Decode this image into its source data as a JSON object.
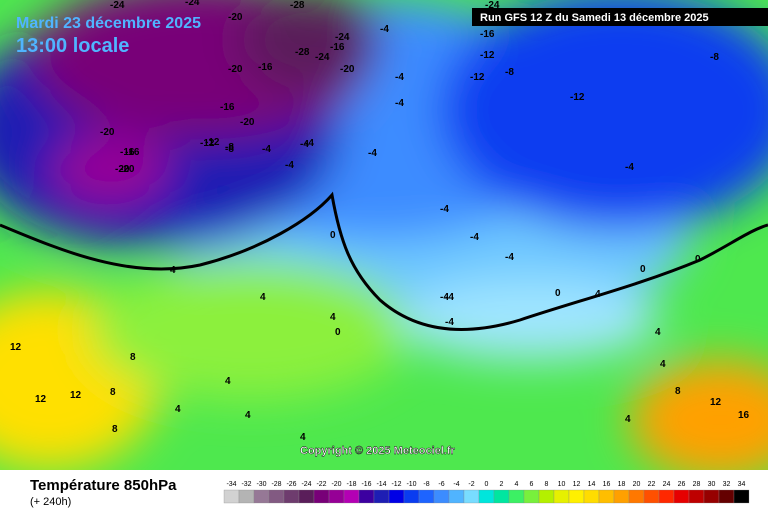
{
  "header": {
    "date": "Mardi 23 décembre 2025",
    "time": "13:00 locale",
    "run": "Run GFS 12 Z du Samedi 13 décembre 2025"
  },
  "map": {
    "contour_labels": [
      "-24",
      "-20",
      "-24",
      "-28",
      "-24",
      "-20",
      "-16",
      "-28",
      "-24",
      "-16",
      "-20",
      "-4",
      "-16",
      "-24",
      "-12",
      "-8",
      "-12",
      "-4",
      "-4",
      "-16",
      "-20",
      "-8",
      "-12",
      "-4",
      "-4",
      "-4",
      "-4",
      "-4",
      "-4",
      "-12",
      "-4",
      "0",
      "0",
      "-4",
      "-4",
      "0",
      "4",
      "4",
      "4",
      "0",
      "4",
      "12",
      "12",
      "8",
      "8",
      "12",
      "4",
      "4",
      "4",
      "4",
      "8",
      "12",
      "16",
      "4",
      "-4",
      "0",
      "4",
      "8",
      "4",
      "-20",
      "-20",
      "-16",
      "-16",
      "-20",
      "-4",
      "-12",
      "-8",
      "-8",
      "-4"
    ],
    "copyright": "Copyright © 2025 Meteociel.fr"
  },
  "footer": {
    "title": "Température 850hPa",
    "lead": "(+ 240h)"
  },
  "legend": {
    "scale": [
      {
        "value": -34,
        "color": "#d2d2d2"
      },
      {
        "value": -32,
        "color": "#b4b4b4"
      },
      {
        "value": -30,
        "color": "#967896"
      },
      {
        "value": -28,
        "color": "#825a82"
      },
      {
        "value": -26,
        "color": "#6e3c6e"
      },
      {
        "value": -24,
        "color": "#5a1e5a"
      },
      {
        "value": -22,
        "color": "#780078"
      },
      {
        "value": -20,
        "color": "#960096"
      },
      {
        "value": -18,
        "color": "#b400b4"
      },
      {
        "value": -16,
        "color": "#3c00a0"
      },
      {
        "value": -14,
        "color": "#1e1eb4"
      },
      {
        "value": -12,
        "color": "#0000e6"
      },
      {
        "value": -10,
        "color": "#0a3cf0"
      },
      {
        "value": -8,
        "color": "#1e64ff"
      },
      {
        "value": -6,
        "color": "#3c8cff"
      },
      {
        "value": -4,
        "color": "#50b4ff"
      },
      {
        "value": -2,
        "color": "#78dcff"
      },
      {
        "value": 0,
        "color": "#00e6dc"
      },
      {
        "value": 2,
        "color": "#00e6a0"
      },
      {
        "value": 4,
        "color": "#3cf064"
      },
      {
        "value": 6,
        "color": "#78f03c"
      },
      {
        "value": 8,
        "color": "#b4f000"
      },
      {
        "value": 10,
        "color": "#e6f000"
      },
      {
        "value": 12,
        "color": "#fff000"
      },
      {
        "value": 14,
        "color": "#ffdc00"
      },
      {
        "value": 16,
        "color": "#ffbe00"
      },
      {
        "value": 18,
        "color": "#ffa000"
      },
      {
        "value": 20,
        "color": "#ff7800"
      },
      {
        "value": 22,
        "color": "#ff5000"
      },
      {
        "value": 24,
        "color": "#ff2800"
      },
      {
        "value": 26,
        "color": "#e60000"
      },
      {
        "value": 28,
        "color": "#be0000"
      },
      {
        "value": 30,
        "color": "#960000"
      },
      {
        "value": 32,
        "color": "#640000"
      },
      {
        "value": 34,
        "color": "#000000"
      }
    ]
  }
}
